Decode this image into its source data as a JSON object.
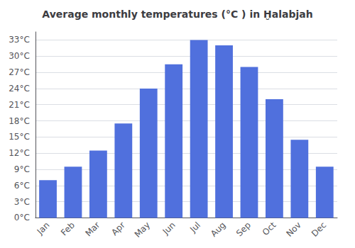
{
  "chart_data": {
    "type": "bar",
    "title": "Average monthly temperatures (°C ) in Ḫalabjah",
    "categories": [
      "Jan",
      "Feb",
      "Mar",
      "Apr",
      "May",
      "Jun",
      "Jul",
      "Aug",
      "Sep",
      "Oct",
      "Nov",
      "Dec"
    ],
    "values": [
      7,
      9.5,
      12.5,
      17.5,
      24,
      28.5,
      33,
      32,
      28,
      22,
      14.5,
      9.5
    ],
    "ylim": [
      0,
      34.5
    ],
    "yticks": [
      {
        "value": 0,
        "label": "0°C"
      },
      {
        "value": 3,
        "label": "3°C"
      },
      {
        "value": 6,
        "label": "6°C"
      },
      {
        "value": 9,
        "label": "9°C"
      },
      {
        "value": 12,
        "label": "12°C"
      },
      {
        "value": 15,
        "label": "15°C"
      },
      {
        "value": 18,
        "label": "18°C"
      },
      {
        "value": 21,
        "label": "21°C"
      },
      {
        "value": 24,
        "label": "24°C"
      },
      {
        "value": 27,
        "label": "27°C"
      },
      {
        "value": 30,
        "label": "30°C"
      },
      {
        "value": 33,
        "label": "33°C"
      }
    ],
    "grid": true
  }
}
